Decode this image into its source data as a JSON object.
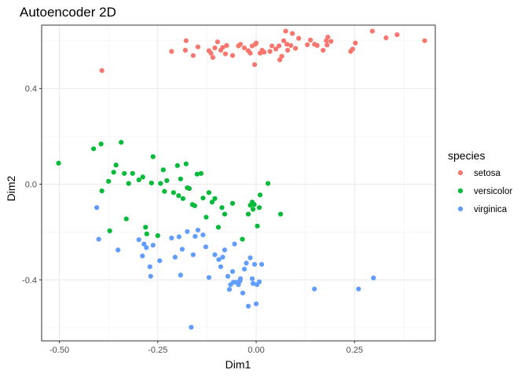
{
  "chart_data": {
    "type": "scatter",
    "title": "Autoencoder 2D",
    "xlabel": "Dim1",
    "ylabel": "Dim2",
    "xlim": [
      -0.545,
      0.455
    ],
    "ylim": [
      -0.655,
      0.665
    ],
    "x_ticks": [
      -0.5,
      -0.25,
      0.0,
      0.25
    ],
    "x_tick_labels": [
      "-0.50",
      "-0.25",
      "0.00",
      "0.25"
    ],
    "y_ticks": [
      -0.4,
      0.0,
      0.4
    ],
    "y_tick_labels": [
      "-0.4",
      "0.0",
      "0.4"
    ],
    "grid": true,
    "legend": {
      "title": "species",
      "position": "right"
    },
    "series": [
      {
        "name": "setosa",
        "color": "#F8766D",
        "points": [
          [
            -0.392,
            0.475
          ],
          [
            -0.215,
            0.555
          ],
          [
            -0.18,
            0.56
          ],
          [
            -0.178,
            0.6
          ],
          [
            -0.16,
            0.538
          ],
          [
            -0.148,
            0.574
          ],
          [
            -0.12,
            0.558
          ],
          [
            -0.115,
            0.548
          ],
          [
            -0.11,
            0.53
          ],
          [
            -0.105,
            0.57
          ],
          [
            -0.098,
            0.595
          ],
          [
            -0.09,
            0.56
          ],
          [
            -0.085,
            0.572
          ],
          [
            -0.078,
            0.545
          ],
          [
            -0.075,
            0.58
          ],
          [
            -0.06,
            0.538
          ],
          [
            -0.045,
            0.578
          ],
          [
            -0.04,
            0.585
          ],
          [
            -0.03,
            0.57
          ],
          [
            -0.02,
            0.558
          ],
          [
            -0.015,
            0.548
          ],
          [
            -0.01,
            0.578
          ],
          [
            -0.004,
            0.5
          ],
          [
            -0.002,
            0.585
          ],
          [
            0.0,
            0.59
          ],
          [
            0.01,
            0.548
          ],
          [
            0.015,
            0.56
          ],
          [
            0.02,
            0.552
          ],
          [
            0.035,
            0.555
          ],
          [
            0.04,
            0.578
          ],
          [
            0.05,
            0.565
          ],
          [
            0.058,
            0.578
          ],
          [
            0.06,
            0.52
          ],
          [
            0.065,
            0.535
          ],
          [
            0.07,
            0.6
          ],
          [
            0.075,
            0.64
          ],
          [
            0.078,
            0.585
          ],
          [
            0.08,
            0.56
          ],
          [
            0.088,
            0.58
          ],
          [
            0.092,
            0.63
          ],
          [
            0.1,
            0.568
          ],
          [
            0.108,
            0.61
          ],
          [
            0.13,
            0.583
          ],
          [
            0.138,
            0.603
          ],
          [
            0.148,
            0.585
          ],
          [
            0.155,
            0.58
          ],
          [
            0.17,
            0.56
          ],
          [
            0.178,
            0.6
          ],
          [
            0.18,
            0.582
          ],
          [
            0.182,
            0.615
          ],
          [
            0.19,
            0.597
          ],
          [
            0.24,
            0.555
          ],
          [
            0.245,
            0.565
          ],
          [
            0.252,
            0.59
          ],
          [
            0.295,
            0.64
          ],
          [
            0.33,
            0.612
          ],
          [
            0.358,
            0.625
          ],
          [
            0.428,
            0.6
          ]
        ]
      },
      {
        "name": "versicolor",
        "color": "#00BA38",
        "points": [
          [
            -0.502,
            0.088
          ],
          [
            -0.413,
            0.148
          ],
          [
            -0.394,
            0.168
          ],
          [
            -0.392,
            -0.028
          ],
          [
            -0.375,
            0.012
          ],
          [
            -0.372,
            -0.195
          ],
          [
            -0.362,
            0.05
          ],
          [
            -0.356,
            0.08
          ],
          [
            -0.343,
            0.175
          ],
          [
            -0.335,
            0.045
          ],
          [
            -0.33,
            -0.145
          ],
          [
            -0.324,
            0.003
          ],
          [
            -0.314,
            0.045
          ],
          [
            -0.298,
            0.018
          ],
          [
            -0.288,
            0.03
          ],
          [
            -0.281,
            -0.18
          ],
          [
            -0.278,
            -0.208
          ],
          [
            -0.266,
            0.005
          ],
          [
            -0.262,
            0.115
          ],
          [
            -0.25,
            -0.215
          ],
          [
            -0.243,
            0.003
          ],
          [
            -0.236,
            0.06
          ],
          [
            -0.233,
            -0.03
          ],
          [
            -0.227,
            0.015
          ],
          [
            -0.21,
            -0.035
          ],
          [
            -0.2,
            0.078
          ],
          [
            -0.197,
            -0.048
          ],
          [
            -0.192,
            0.022
          ],
          [
            -0.186,
            -0.06
          ],
          [
            -0.178,
            0.085
          ],
          [
            -0.175,
            -0.015
          ],
          [
            -0.17,
            -0.018
          ],
          [
            -0.162,
            -0.085
          ],
          [
            -0.156,
            -0.09
          ],
          [
            -0.15,
            0.042
          ],
          [
            -0.14,
            0.045
          ],
          [
            -0.135,
            -0.058
          ],
          [
            -0.127,
            -0.138
          ],
          [
            -0.12,
            -0.035
          ],
          [
            -0.112,
            -0.075
          ],
          [
            -0.105,
            -0.06
          ],
          [
            -0.096,
            -0.18
          ],
          [
            -0.087,
            -0.098
          ],
          [
            -0.08,
            -0.125
          ],
          [
            -0.06,
            -0.08
          ],
          [
            -0.035,
            -0.23
          ],
          [
            -0.02,
            -0.125
          ],
          [
            -0.015,
            -0.088
          ],
          [
            -0.01,
            -0.075
          ],
          [
            -0.008,
            -0.105
          ],
          [
            -0.005,
            -0.085
          ],
          [
            0.003,
            -0.175
          ],
          [
            0.008,
            -0.098
          ],
          [
            0.01,
            -0.045
          ],
          [
            0.03,
            0.003
          ],
          [
            0.062,
            -0.125
          ]
        ]
      },
      {
        "name": "virginica",
        "color": "#619CFF",
        "points": [
          [
            -0.405,
            -0.098
          ],
          [
            -0.4,
            -0.23
          ],
          [
            -0.351,
            -0.275
          ],
          [
            -0.298,
            -0.232
          ],
          [
            -0.289,
            -0.3
          ],
          [
            -0.285,
            -0.25
          ],
          [
            -0.279,
            -0.265
          ],
          [
            -0.27,
            -0.345
          ],
          [
            -0.268,
            -0.385
          ],
          [
            -0.262,
            -0.255
          ],
          [
            -0.245,
            -0.32
          ],
          [
            -0.215,
            -0.225
          ],
          [
            -0.206,
            -0.305
          ],
          [
            -0.196,
            -0.22
          ],
          [
            -0.192,
            -0.38
          ],
          [
            -0.188,
            -0.272
          ],
          [
            -0.175,
            -0.198
          ],
          [
            -0.165,
            -0.598
          ],
          [
            -0.16,
            -0.295
          ],
          [
            -0.155,
            -0.218
          ],
          [
            -0.148,
            -0.192
          ],
          [
            -0.135,
            -0.212
          ],
          [
            -0.128,
            -0.262
          ],
          [
            -0.12,
            -0.39
          ],
          [
            -0.105,
            -0.295
          ],
          [
            -0.095,
            -0.315
          ],
          [
            -0.09,
            -0.345
          ],
          [
            -0.085,
            -0.305
          ],
          [
            -0.08,
            -0.275
          ],
          [
            -0.072,
            -0.385
          ],
          [
            -0.068,
            -0.44
          ],
          [
            -0.065,
            -0.42
          ],
          [
            -0.06,
            -0.365
          ],
          [
            -0.058,
            -0.41
          ],
          [
            -0.055,
            -0.25
          ],
          [
            -0.05,
            -0.41
          ],
          [
            -0.045,
            -0.42
          ],
          [
            -0.041,
            -0.405
          ],
          [
            -0.04,
            -0.395
          ],
          [
            -0.034,
            -0.455
          ],
          [
            -0.03,
            -0.355
          ],
          [
            -0.025,
            -0.33
          ],
          [
            -0.02,
            -0.51
          ],
          [
            -0.015,
            -0.308
          ],
          [
            -0.01,
            -0.395
          ],
          [
            -0.008,
            -0.415
          ],
          [
            -0.004,
            -0.335
          ],
          [
            0.0,
            -0.5
          ],
          [
            0.002,
            -0.42
          ],
          [
            0.008,
            -0.408
          ],
          [
            0.014,
            -0.335
          ],
          [
            0.148,
            -0.438
          ],
          [
            0.26,
            -0.438
          ],
          [
            0.298,
            -0.392
          ]
        ]
      }
    ]
  }
}
